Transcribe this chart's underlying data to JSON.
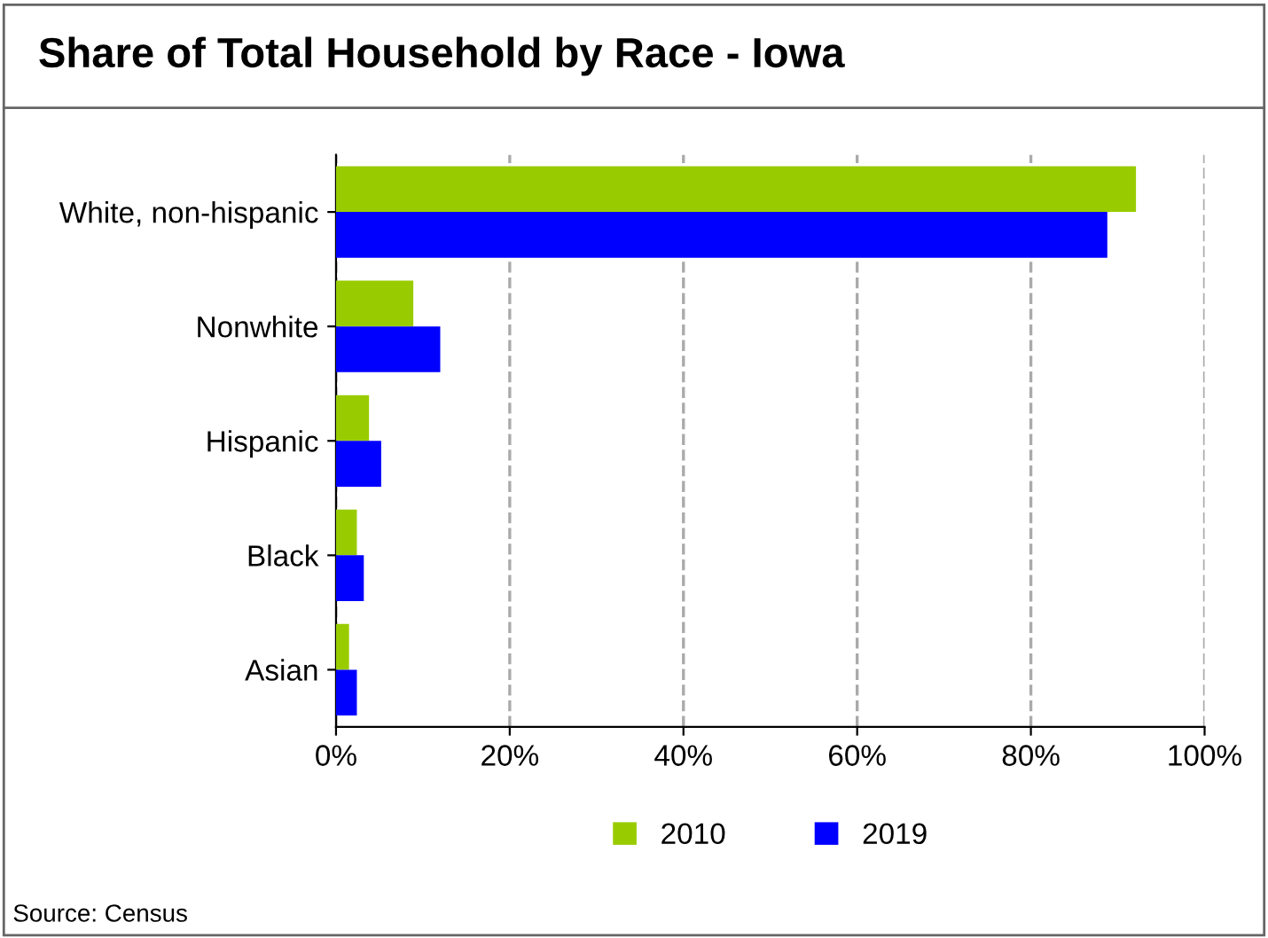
{
  "chart_data": {
    "type": "bar",
    "orientation": "horizontal",
    "title": "Share of Total Household by Race - Iowa",
    "categories": [
      "White, non-hispanic",
      "Nonwhite",
      "Hispanic",
      "Black",
      "Asian"
    ],
    "series": [
      {
        "name": "2010",
        "color": "#99cc00",
        "values": [
          92.1,
          8.9,
          3.8,
          2.4,
          1.5
        ]
      },
      {
        "name": "2019",
        "color": "#0000ff",
        "values": [
          88.8,
          12.0,
          5.2,
          3.2,
          2.4
        ]
      }
    ],
    "xlim": [
      0,
      100
    ],
    "xticks": [
      {
        "value": 0,
        "label": "0%"
      },
      {
        "value": 20,
        "label": "20%"
      },
      {
        "value": 40,
        "label": "40%"
      },
      {
        "value": 60,
        "label": "60%"
      },
      {
        "value": 80,
        "label": "80%"
      },
      {
        "value": 100,
        "label": "100%"
      }
    ],
    "grid": "x",
    "legend": "bottom",
    "annotations": [
      "Source: Census"
    ]
  }
}
